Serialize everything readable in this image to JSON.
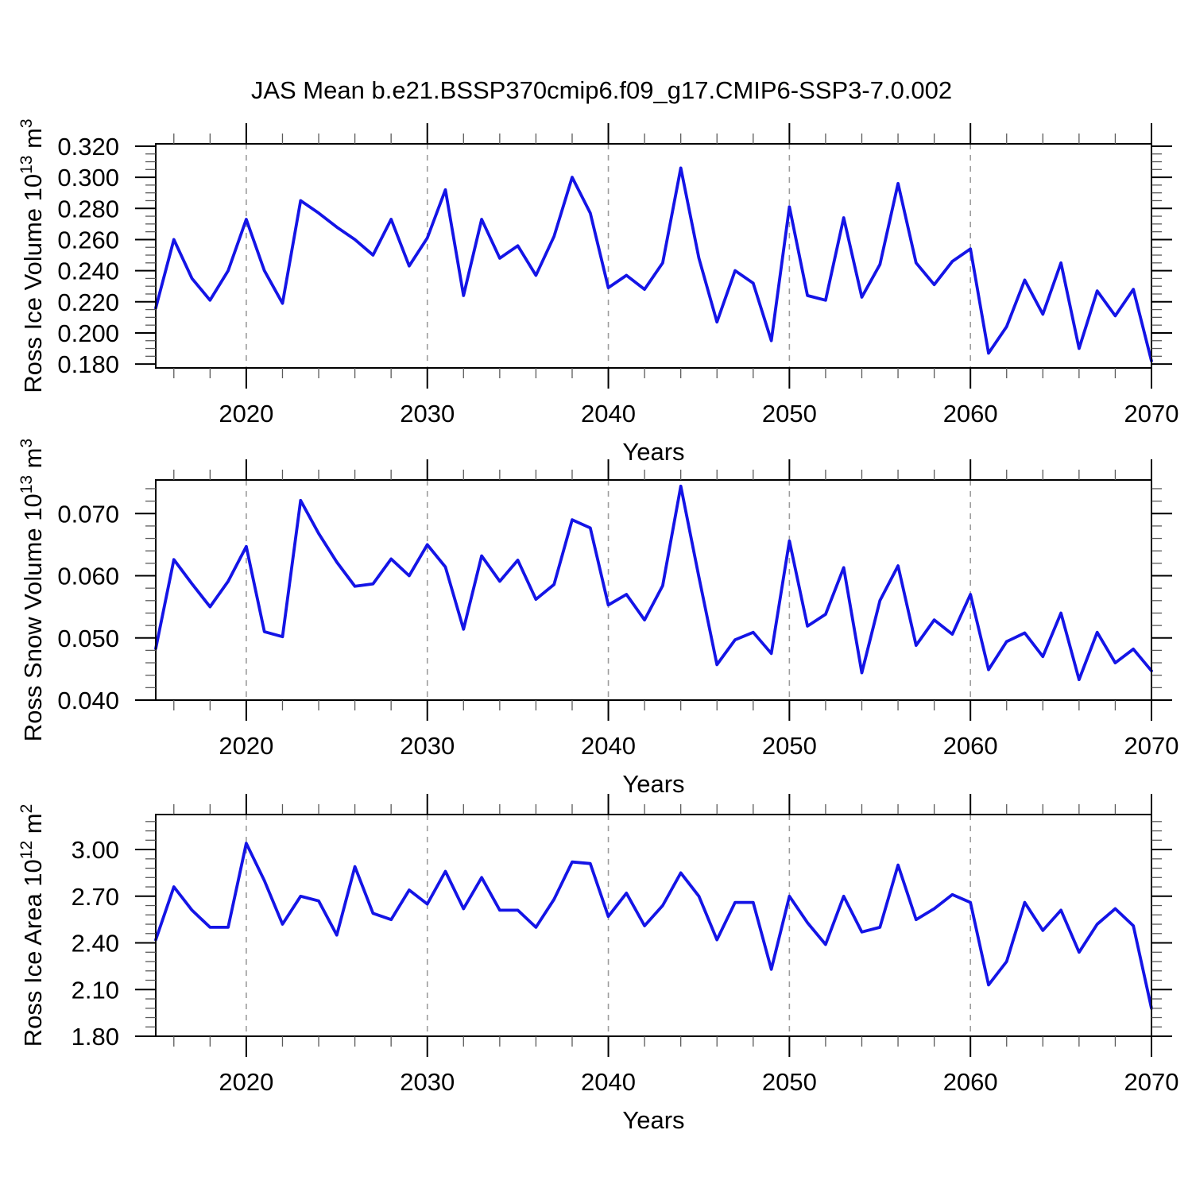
{
  "title": "JAS Mean b.e21.BSSP370cmip6.f09_g17.CMIP6-SSP3-7.0.002",
  "colors": {
    "line": "#1414e6",
    "grid": "#9c9c9c",
    "axis": "#000000",
    "minor_tick": "#5a5a5a"
  },
  "x_axis": {
    "label": "Years",
    "range": [
      2015,
      2070
    ],
    "major_ticks": [
      2020,
      2030,
      2040,
      2050,
      2060,
      2070
    ],
    "major_labels": [
      "2020",
      "2030",
      "2040",
      "2050",
      "2060",
      "2070"
    ],
    "minor_step": 2,
    "gridlines": [
      2020,
      2030,
      2040,
      2050,
      2060
    ],
    "years": [
      2015,
      2016,
      2017,
      2018,
      2019,
      2020,
      2021,
      2022,
      2023,
      2024,
      2025,
      2026,
      2027,
      2028,
      2029,
      2030,
      2031,
      2032,
      2033,
      2034,
      2035,
      2036,
      2037,
      2038,
      2039,
      2040,
      2041,
      2042,
      2043,
      2044,
      2045,
      2046,
      2047,
      2048,
      2049,
      2050,
      2051,
      2052,
      2053,
      2054,
      2055,
      2056,
      2057,
      2058,
      2059,
      2060,
      2061,
      2062,
      2063,
      2064,
      2065,
      2066,
      2067,
      2068,
      2069,
      2070
    ]
  },
  "chart_data": [
    {
      "id": "ross-ice-volume",
      "type": "line",
      "ylabel": "Ross Ice Volume 10¹³ m³",
      "ylabel_parts": [
        {
          "t": "Ross Ice Volume 10"
        },
        {
          "t": "13",
          "sup": true
        },
        {
          "t": " m"
        },
        {
          "t": "3",
          "sup": true
        }
      ],
      "ylim": [
        0.1775,
        0.3215
      ],
      "y_ticks": {
        "values": [
          0.32,
          0.3,
          0.28,
          0.26,
          0.24,
          0.22,
          0.2,
          0.18
        ],
        "labels": [
          "0.320",
          "0.300",
          "0.280",
          "0.260",
          "0.240",
          "0.220",
          "0.200",
          "0.180"
        ],
        "minor_step": 0.005
      },
      "values": [
        0.216,
        0.26,
        0.235,
        0.221,
        0.24,
        0.273,
        0.24,
        0.219,
        0.285,
        0.277,
        0.268,
        0.26,
        0.25,
        0.273,
        0.243,
        0.261,
        0.292,
        0.224,
        0.273,
        0.248,
        0.256,
        0.237,
        0.262,
        0.3,
        0.277,
        0.229,
        0.237,
        0.228,
        0.245,
        0.306,
        0.248,
        0.207,
        0.24,
        0.232,
        0.195,
        0.281,
        0.224,
        0.221,
        0.274,
        0.223,
        0.244,
        0.296,
        0.245,
        0.231,
        0.246,
        0.254,
        0.187,
        0.204,
        0.234,
        0.212,
        0.245,
        0.19,
        0.227,
        0.211,
        0.228,
        0.182
      ]
    },
    {
      "id": "ross-snow-volume",
      "type": "line",
      "ylabel": "Ross Snow Volume 10¹³ m³",
      "ylabel_parts": [
        {
          "t": "Ross Snow Volume 10"
        },
        {
          "t": "13",
          "sup": true
        },
        {
          "t": " m"
        },
        {
          "t": "3",
          "sup": true
        }
      ],
      "ylim": [
        0.04,
        0.0754
      ],
      "y_ticks": {
        "values": [
          0.07,
          0.06,
          0.05,
          0.04
        ],
        "labels": [
          "0.070",
          "0.060",
          "0.050",
          "0.040"
        ],
        "minor_step": 0.002
      },
      "values": [
        0.0483,
        0.0626,
        0.0587,
        0.055,
        0.0591,
        0.0647,
        0.051,
        0.0502,
        0.0721,
        0.0668,
        0.0622,
        0.0583,
        0.0587,
        0.0627,
        0.06,
        0.065,
        0.0614,
        0.0514,
        0.0632,
        0.0591,
        0.0625,
        0.0562,
        0.0586,
        0.069,
        0.0677,
        0.0553,
        0.057,
        0.0529,
        0.0584,
        0.0744,
        0.0598,
        0.0457,
        0.0497,
        0.0509,
        0.0475,
        0.0656,
        0.0519,
        0.0538,
        0.0613,
        0.0444,
        0.056,
        0.0616,
        0.0488,
        0.0529,
        0.0506,
        0.057,
        0.0449,
        0.0494,
        0.0508,
        0.047,
        0.054,
        0.0433,
        0.0509,
        0.046,
        0.0482,
        0.0447
      ]
    },
    {
      "id": "ross-ice-area",
      "type": "line",
      "ylabel": "Ross Ice Area 10¹² m²",
      "ylabel_parts": [
        {
          "t": "Ross Ice Area 10"
        },
        {
          "t": "12",
          "sup": true
        },
        {
          "t": " m"
        },
        {
          "t": "2",
          "sup": true
        }
      ],
      "ylim": [
        1.8,
        3.225
      ],
      "y_ticks": {
        "values": [
          3.0,
          2.7,
          2.4,
          2.1,
          1.8
        ],
        "labels": [
          "3.00",
          "2.70",
          "2.40",
          "2.10",
          "1.80"
        ],
        "minor_step": 0.06
      },
      "values": [
        2.42,
        2.76,
        2.61,
        2.5,
        2.5,
        3.04,
        2.8,
        2.52,
        2.7,
        2.67,
        2.45,
        2.89,
        2.59,
        2.55,
        2.74,
        2.65,
        2.86,
        2.62,
        2.82,
        2.61,
        2.61,
        2.5,
        2.68,
        2.92,
        2.91,
        2.57,
        2.72,
        2.51,
        2.64,
        2.85,
        2.7,
        2.42,
        2.66,
        2.66,
        2.23,
        2.7,
        2.53,
        2.39,
        2.7,
        2.47,
        2.5,
        2.9,
        2.55,
        2.62,
        2.71,
        2.66,
        2.13,
        2.28,
        2.66,
        2.48,
        2.61,
        2.34,
        2.52,
        2.62,
        2.51,
        1.98
      ]
    }
  ]
}
